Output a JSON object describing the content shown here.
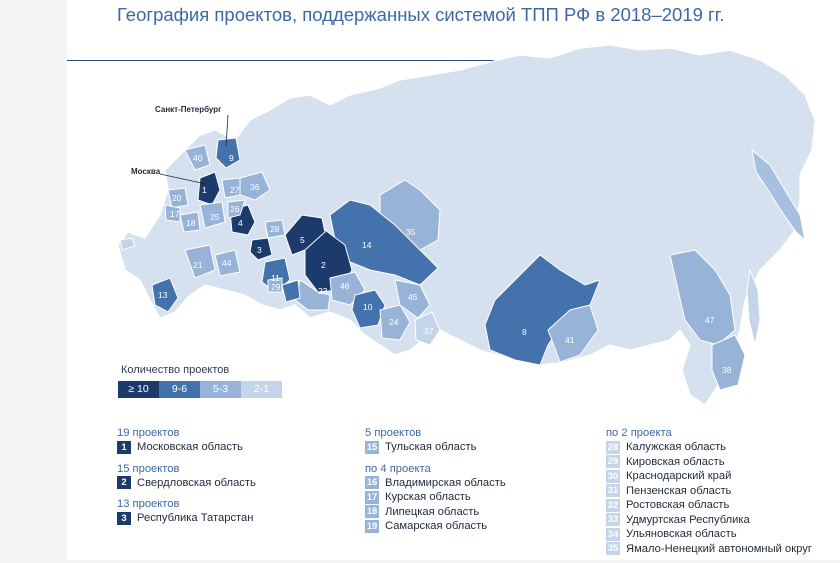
{
  "title": "География проектов, поддержанных системой ТПП РФ в 2018–2019 гг.",
  "colors": {
    "c1": "#1c3b6c",
    "c2": "#4472ad",
    "c3": "#98b3d8",
    "c4": "#c4d4ea",
    "base": "#d6e1f0",
    "accent": "#3d68a8"
  },
  "map": {
    "cities": [
      "Санкт-Петербург",
      "Москва"
    ],
    "region_numbers": [
      "1",
      "2",
      "3",
      "4",
      "5",
      "8",
      "9",
      "10",
      "11",
      "13",
      "14",
      "17",
      "18",
      "20",
      "21",
      "23",
      "24",
      "25",
      "26",
      "27",
      "28",
      "29",
      "35",
      "36",
      "37",
      "38",
      "40",
      "41",
      "44",
      "45",
      "46",
      "47"
    ]
  },
  "legend": {
    "title": "Количество проектов",
    "items": [
      "≥ 10",
      "9-6",
      "5-3",
      "2-1"
    ]
  },
  "list": {
    "col1": [
      {
        "header": "19 проектов",
        "items": [
          {
            "num": "1",
            "name": "Московская область"
          }
        ]
      },
      {
        "header": "15 проектов",
        "items": [
          {
            "num": "2",
            "name": "Свердловская область"
          }
        ]
      },
      {
        "header": "13 проектов",
        "items": [
          {
            "num": "3",
            "name": "Республика Татарстан"
          }
        ]
      }
    ],
    "col2": [
      {
        "header": "5 проектов",
        "items": [
          {
            "num": "15",
            "name": "Тульская область"
          }
        ]
      },
      {
        "header": "по 4 проекта",
        "items": [
          {
            "num": "16",
            "name": "Владимирская область"
          },
          {
            "num": "17",
            "name": "Курская область"
          },
          {
            "num": "18",
            "name": "Липецкая область"
          },
          {
            "num": "19",
            "name": "Самарская область"
          }
        ]
      }
    ],
    "col3": [
      {
        "header": "по 2 проекта",
        "items": [
          {
            "num": "28",
            "name": "Калужская область"
          },
          {
            "num": "29",
            "name": "Кировская область"
          },
          {
            "num": "30",
            "name": "Краснодарский край"
          },
          {
            "num": "31",
            "name": "Пензенская область"
          },
          {
            "num": "32",
            "name": "Ростовская область"
          },
          {
            "num": "33",
            "name": "Удмуртская Республика"
          },
          {
            "num": "34",
            "name": "Ульяновская область"
          },
          {
            "num": "35",
            "name": "Ямало-Ненецкий автономный округ"
          }
        ]
      }
    ]
  }
}
